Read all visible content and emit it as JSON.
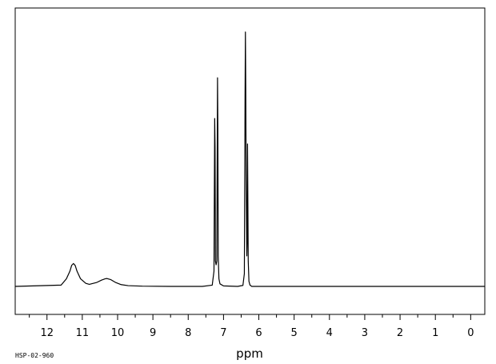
{
  "chart_data": {
    "type": "line",
    "title": "",
    "xlabel": "ppm",
    "ylabel": "",
    "xlim": [
      12.9,
      -0.4
    ],
    "x_reversed": true,
    "ylim": [
      -0.08,
      1.0
    ],
    "grid": false,
    "x_ticks": [
      12,
      11,
      10,
      9,
      8,
      7,
      6,
      5,
      4,
      3,
      2,
      1,
      0
    ],
    "x_tick_labels": [
      "12",
      "11",
      "10",
      "9",
      "8",
      "7",
      "6",
      "5",
      "4",
      "3",
      "2",
      "1",
      "0"
    ],
    "x_minor_step": 0.5,
    "series": [
      {
        "color": "#000000",
        "x": [
          12.9,
          11.6,
          11.45,
          11.35,
          11.3,
          11.25,
          11.2,
          11.15,
          11.05,
          10.9,
          10.8,
          10.6,
          10.45,
          10.35,
          10.3,
          10.2,
          10.05,
          9.9,
          9.7,
          9.3,
          8.5,
          7.6,
          7.32,
          7.27,
          7.25,
          7.24,
          7.23,
          7.21,
          7.19,
          7.17,
          7.16,
          7.15,
          7.13,
          7.1,
          7.0,
          6.6,
          6.45,
          6.41,
          6.39,
          6.38,
          6.37,
          6.36,
          6.34,
          6.33,
          6.32,
          6.3,
          6.28,
          6.25,
          6.2,
          5.5,
          4.0,
          2.0,
          0.0,
          -0.4
        ],
        "y": [
          0.0,
          0.005,
          0.03,
          0.06,
          0.083,
          0.09,
          0.082,
          0.06,
          0.03,
          0.012,
          0.008,
          0.015,
          0.025,
          0.03,
          0.031,
          0.027,
          0.015,
          0.007,
          0.003,
          0.001,
          0.0,
          0.0,
          0.005,
          0.06,
          0.66,
          0.55,
          0.1,
          0.085,
          0.1,
          0.82,
          0.62,
          0.12,
          0.03,
          0.01,
          0.002,
          0.0,
          0.004,
          0.05,
          0.74,
          1.0,
          0.78,
          0.45,
          0.12,
          0.18,
          0.56,
          0.1,
          0.02,
          0.005,
          0.0,
          0.0,
          0.0,
          0.0,
          0.0,
          0.0
        ]
      }
    ]
  },
  "figure": {
    "code_label": "HSP-02-960"
  }
}
